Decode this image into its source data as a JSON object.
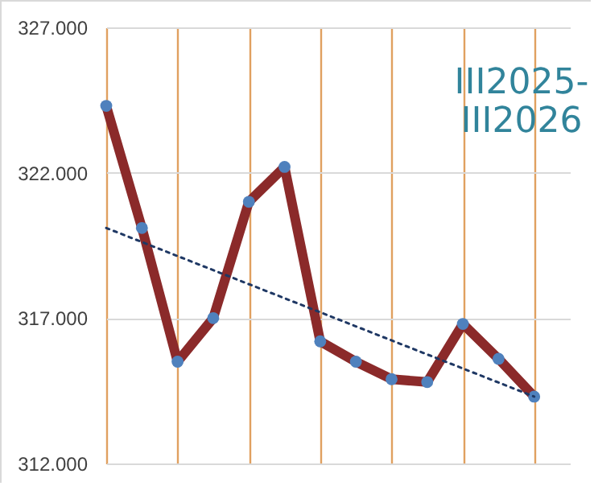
{
  "chart_data": {
    "type": "line",
    "categories": [
      null,
      null,
      null,
      null,
      null,
      null,
      null,
      null,
      null,
      null,
      null,
      null,
      null
    ],
    "series": [
      {
        "color": "#8b2a2a",
        "marker": "circle",
        "values": [
          324.3,
          320.1,
          315.5,
          317.0,
          321.0,
          322.2,
          316.2,
          315.5,
          314.9,
          314.8,
          316.8,
          315.6,
          314.3
        ]
      },
      {
        "color": "#1f3864",
        "marker": "none",
        "line_style": "dotted",
        "values": [
          320.1,
          null,
          null,
          null,
          null,
          null,
          null,
          null,
          null,
          null,
          null,
          null,
          314.3
        ]
      }
    ],
    "ylim": [
      312,
      327
    ],
    "yticks": [
      {
        "value": 312,
        "label": "312.000"
      },
      {
        "value": 317,
        "label": "317.000"
      },
      {
        "value": 322,
        "label": "322.000"
      },
      {
        "value": 327,
        "label": "327.000"
      }
    ],
    "grid": true,
    "tick_labels": "y",
    "annotations": [
      "III2025-\nIII2026"
    ]
  }
}
